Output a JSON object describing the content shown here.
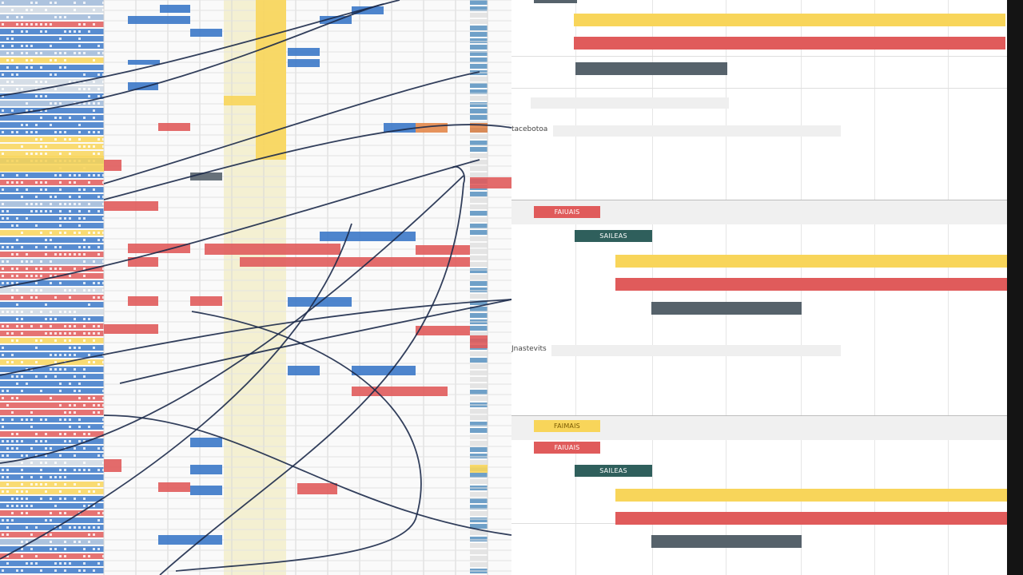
{
  "colors": {
    "yellow": "#f8d55a",
    "red": "#e05b5b",
    "slate": "#56626b",
    "teal": "#2f5f5c",
    "blue": "#3b78c8",
    "orange": "#e3874a",
    "pale_yellow": "#f4f0d2",
    "ink": "#1c2a4a"
  },
  "timeline": {
    "section_1_label": "tacebotoa",
    "section_2_label": "Jnastevits",
    "tags": {
      "group1_red": "FAIUAIS",
      "group1_teal": "SAILEAS",
      "group2_yellow": "FAIMAIS",
      "group2_red": "FAIUAIS",
      "group2_teal": "SAILEAS"
    }
  }
}
